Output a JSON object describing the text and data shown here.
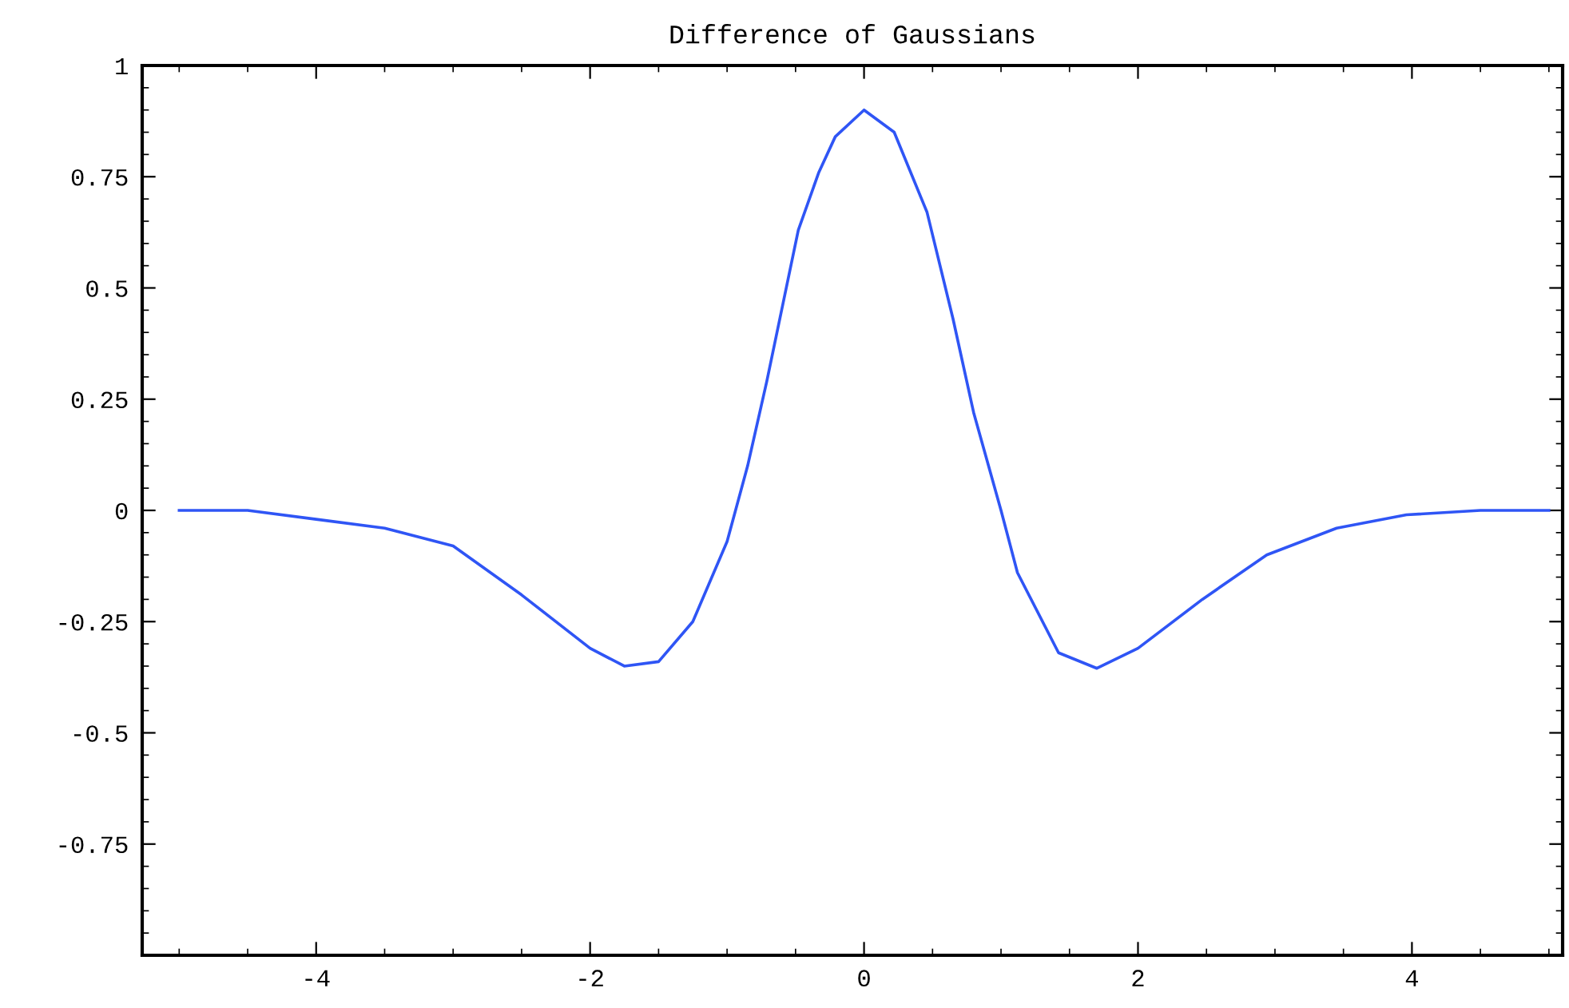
{
  "chart_data": {
    "type": "line",
    "title": "Difference of Gaussians",
    "x": [
      -5,
      -4.5,
      -4,
      -3.5,
      -3,
      -2.5,
      -2,
      -1.75,
      -1.5,
      -1.25,
      -1.0,
      -0.85,
      -0.71,
      -0.48,
      -0.33,
      -0.21,
      0,
      0.22,
      0.46,
      0.65,
      0.8,
      1.0,
      1.12,
      1.42,
      1.7,
      2.0,
      2.47,
      2.94,
      3.45,
      3.96,
      4.5,
      5
    ],
    "series": [
      {
        "color": "#2f55f5",
        "values": [
          0,
          0,
          -0.02,
          -0.04,
          -0.08,
          -0.19,
          -0.31,
          -0.35,
          -0.34,
          -0.25,
          -0.07,
          0.1,
          0.29,
          0.63,
          0.76,
          0.84,
          0.9,
          0.85,
          0.67,
          0.43,
          0.22,
          0,
          -0.14,
          -0.32,
          -0.355,
          -0.31,
          -0.2,
          -0.1,
          -0.04,
          -0.01,
          0,
          0
        ]
      }
    ],
    "xlim": [
      -5.27,
      5.1
    ],
    "ylim": [
      -1.0,
      1.0
    ],
    "xticks": [
      -4,
      -2,
      0,
      2,
      4
    ],
    "yticks": [
      {
        "value": -0.75,
        "label": "-0.75"
      },
      {
        "value": -0.5,
        "label": "-0.5"
      },
      {
        "value": -0.25,
        "label": "-0.25"
      },
      0,
      {
        "value": 0.25,
        "label": "0.25"
      },
      {
        "value": 0.5,
        "label": "0.5"
      },
      {
        "value": 0.75,
        "label": "0.75"
      },
      1
    ],
    "grid": false,
    "marker": "none",
    "line_style": "solid"
  }
}
